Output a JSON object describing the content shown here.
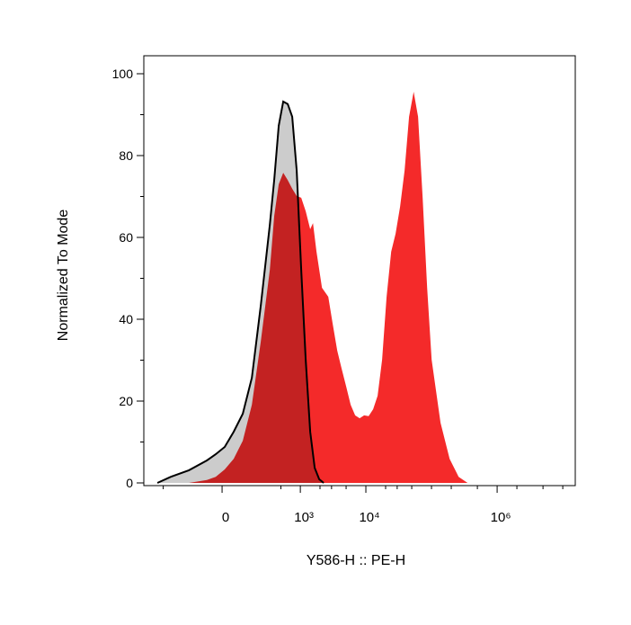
{
  "chart_data": {
    "type": "histogram-overlay",
    "xlabel": "Y586-H :: PE-H",
    "ylabel": "Normalized To Mode",
    "x_scale": "biexponential",
    "xlim": [
      -1000,
      15500000
    ],
    "ylim": [
      0,
      100
    ],
    "xticks": [
      {
        "value": 0,
        "label": "0"
      },
      {
        "value": 1000,
        "label": "10³"
      },
      {
        "value": 10000,
        "label": "10⁴"
      },
      {
        "value": 1000000,
        "label": "10⁶"
      }
    ],
    "x_minor_ticks": [
      -500,
      500,
      2000,
      3000,
      5000,
      20000,
      30000,
      50000,
      100000,
      200000,
      500000,
      2000000,
      5000000,
      10000000
    ],
    "yticks": [
      0,
      20,
      40,
      60,
      80,
      100
    ],
    "y_minor_ticks": [
      10,
      30,
      50,
      70,
      90
    ],
    "series": [
      {
        "color": "#f42a2a",
        "x": [
          -378,
          -186,
          -72,
          -29,
          12,
          54,
          102,
          161,
          234,
          332,
          392,
          462,
          543,
          639,
          750,
          880,
          1032,
          1210,
          1417,
          1560,
          1770,
          2140,
          2670,
          3120,
          3660,
          4280,
          5020,
          5870,
          6870,
          8050,
          9420,
          11030,
          12920,
          15120,
          17710,
          20730,
          24300,
          28400,
          33200,
          38900,
          45600,
          53400,
          62500,
          73200,
          85700,
          100400,
          137500,
          188600,
          258500,
          354200
        ],
        "values": [
          0,
          0,
          0.7,
          1.5,
          3.3,
          5.9,
          10.3,
          19.1,
          34.5,
          52.1,
          65.3,
          73,
          75.8,
          74,
          71.9,
          70.1,
          69.7,
          66.4,
          62,
          63.5,
          56.5,
          47.7,
          45.5,
          38.9,
          32.3,
          27.9,
          23.5,
          19.1,
          16.5,
          15.8,
          16.5,
          16.3,
          18,
          21.3,
          30.1,
          45.5,
          56.5,
          60.9,
          67.5,
          76.3,
          89.5,
          95.6,
          89.5,
          69.7,
          47.7,
          30.1,
          14.7,
          5.9,
          1.5,
          0
        ]
      },
      {
        "color": "#cccccc",
        "line_color": "#000000",
        "x": [
          -618,
          -378,
          -186,
          -72,
          -29,
          12,
          54,
          102,
          161,
          234,
          332,
          392,
          462,
          543,
          639,
          750,
          880,
          1032,
          1210,
          1417,
          1659,
          1944,
          2277
        ],
        "values": [
          0,
          1.5,
          3.1,
          5.5,
          7,
          8.8,
          12.5,
          16.9,
          25.7,
          43.3,
          63.1,
          74.1,
          87.3,
          93.2,
          92.6,
          89.5,
          76.3,
          52.1,
          30.1,
          12.5,
          3.7,
          0.9,
          0
        ]
      }
    ]
  }
}
